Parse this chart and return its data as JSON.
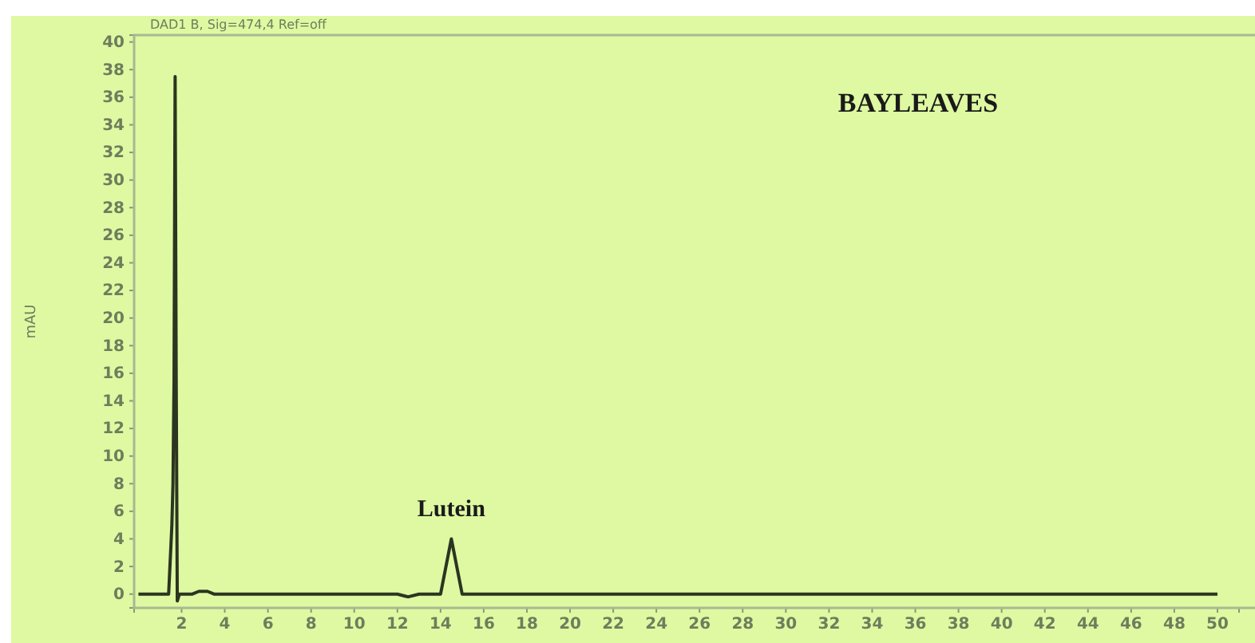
{
  "chart_data": {
    "type": "line",
    "title": "BAYLEAVES",
    "subtitle": "DAD1 B, Sig=474,4 Ref=off",
    "ylabel": "mAU",
    "annotations": [
      {
        "text": "Lutein",
        "x": 14.5,
        "y": 4
      }
    ],
    "x": [
      0,
      1.4,
      1.55,
      1.6,
      1.65,
      1.7,
      1.75,
      1.8,
      1.9,
      2.5,
      2.8,
      3.2,
      3.5,
      12,
      12.5,
      13,
      14,
      14.5,
      15,
      16,
      50
    ],
    "series": [
      {
        "color": "#2b3520",
        "values": [
          0,
          0,
          5,
          8,
          15.5,
          37.5,
          15.5,
          -0.5,
          0,
          0,
          0.2,
          0.2,
          0,
          0,
          -0.2,
          0,
          0,
          4,
          0,
          0,
          0
        ]
      }
    ],
    "xlim": [
      -0.2,
      51
    ],
    "xticks": [
      2,
      4,
      6,
      8,
      10,
      12,
      14,
      16,
      18,
      20,
      22,
      24,
      26,
      28,
      30,
      32,
      34,
      36,
      38,
      40,
      42,
      44,
      46,
      48,
      50
    ],
    "ylim": [
      -1,
      40.5
    ],
    "yticks": [
      0,
      2,
      4,
      6,
      8,
      10,
      12,
      14,
      16,
      18,
      20,
      22,
      24,
      26,
      28,
      30,
      32,
      34,
      36,
      38,
      40
    ],
    "marker": "none",
    "line_style": "solid"
  }
}
